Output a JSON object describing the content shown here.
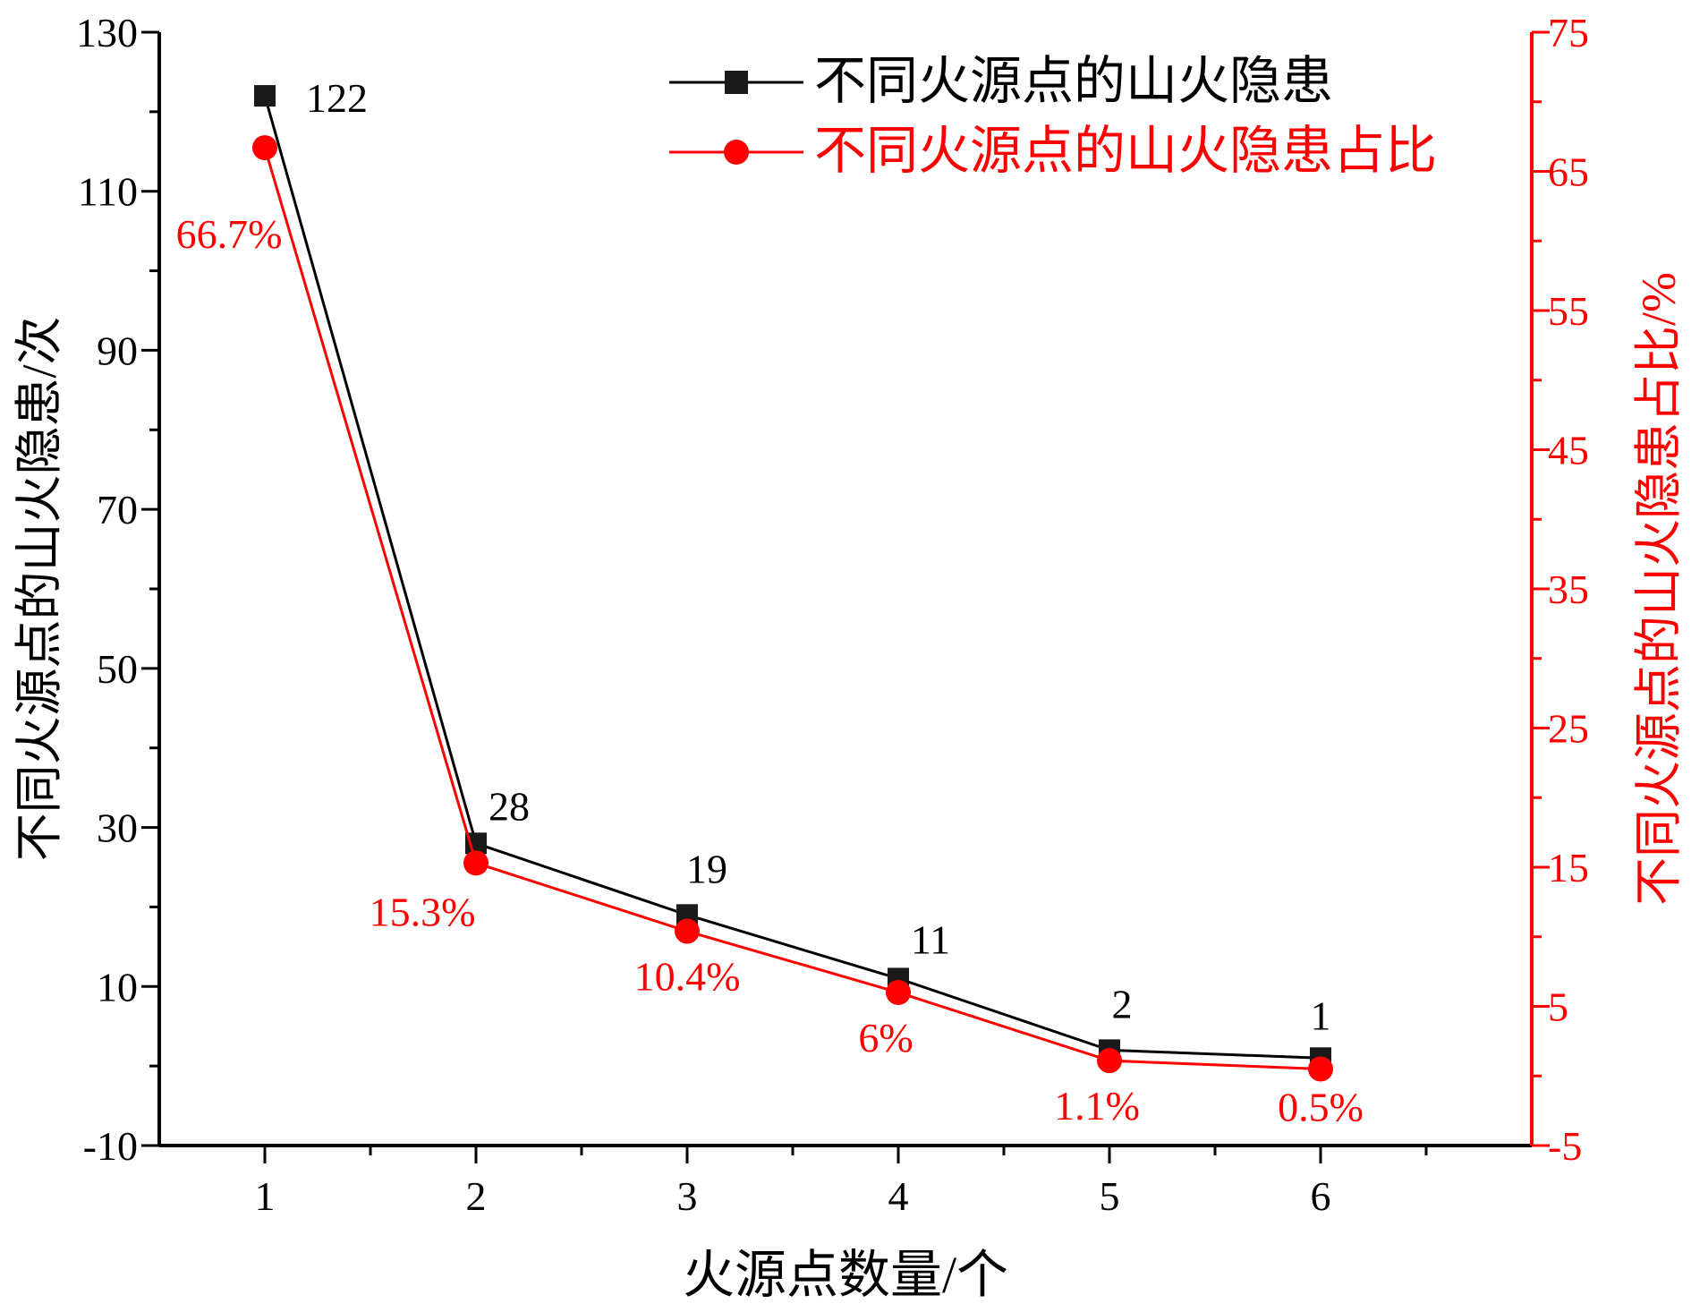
{
  "chart_data": {
    "type": "line",
    "x": [
      1,
      2,
      3,
      4,
      5,
      6
    ],
    "xlabel": "火源点数量/个",
    "xlim": [
      0.5,
      7.0
    ],
    "xticks": [
      "1",
      "2",
      "3",
      "4",
      "5",
      "6"
    ],
    "left_axis": {
      "label": "不同火源点的山火隐患/次",
      "ylim": [
        -10,
        130
      ],
      "ticks": [
        "-10",
        "10",
        "30",
        "50",
        "70",
        "90",
        "110",
        "130"
      ],
      "color": "#000000"
    },
    "right_axis": {
      "label": "不同火源点的山火隐患占比/%",
      "ylim": [
        -5,
        75
      ],
      "ticks": [
        "-5",
        "5",
        "15",
        "25",
        "35",
        "45",
        "55",
        "65",
        "75"
      ],
      "color": "#ff0000"
    },
    "series": [
      {
        "name": "不同火源点的山火隐患",
        "axis": "left",
        "color": "#000000",
        "marker": "square",
        "values": [
          122,
          28,
          19,
          11,
          2,
          1
        ],
        "labels": [
          "122",
          "28",
          "19",
          "11",
          "2",
          "1"
        ]
      },
      {
        "name": "不同火源点的山火隐患占比",
        "axis": "right",
        "color": "#ff0000",
        "marker": "circle",
        "values": [
          66.7,
          15.3,
          10.4,
          6,
          1.1,
          0.5
        ],
        "labels": [
          "66.7%",
          "15.3%",
          "10.4%",
          "6%",
          "1.1%",
          "0.5%"
        ]
      }
    ],
    "legend": "top-right",
    "grid": false
  }
}
